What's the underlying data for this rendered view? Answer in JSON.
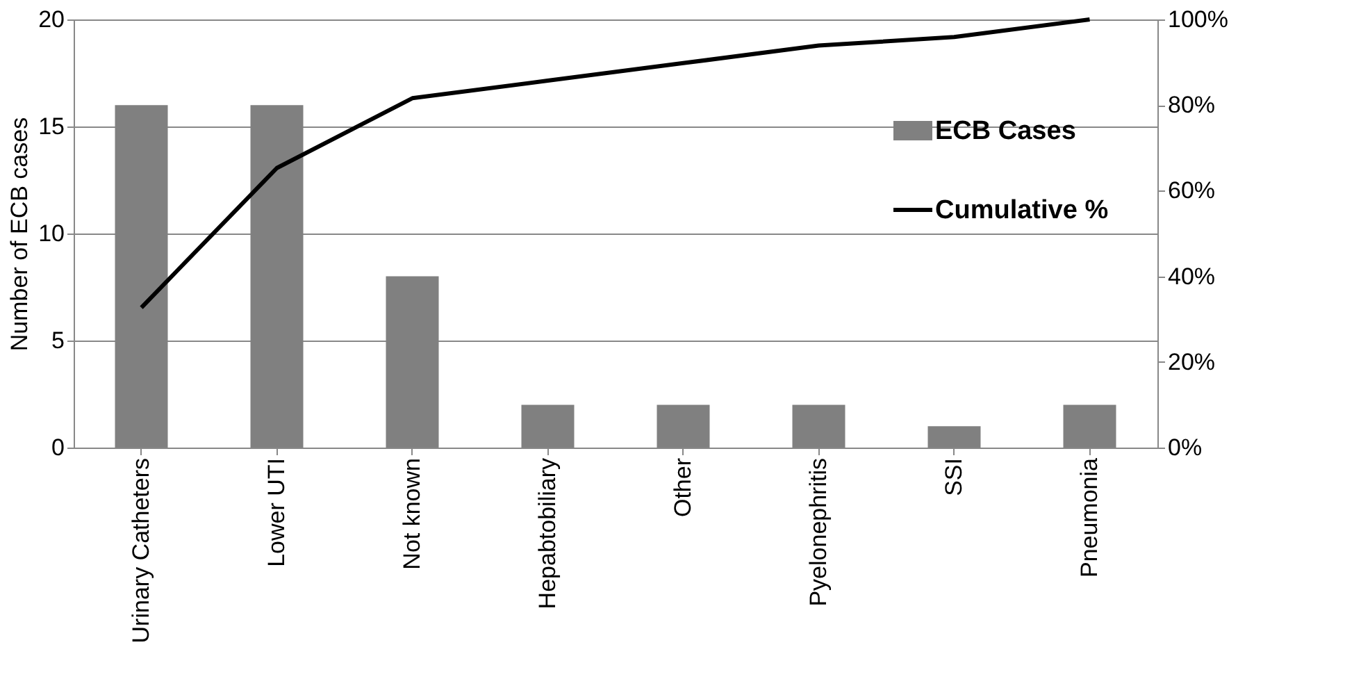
{
  "chart_data": {
    "type": "bar",
    "ylabel": "Number of ECB cases",
    "categories": [
      "Urinary Catheters",
      "Lower UTI",
      "Not known",
      "Hepabtobiliary",
      "Other",
      "Pyelonephritis",
      "SSI",
      "Pneumonia"
    ],
    "series": [
      {
        "name": "ECB Cases",
        "color": "#808080",
        "values": [
          16,
          16,
          8,
          2,
          2,
          2,
          1,
          2
        ]
      },
      {
        "name": "Cumulative %",
        "type": "line",
        "axis": "y2",
        "color": "#000000",
        "values": [
          32.7,
          65.3,
          81.6,
          85.7,
          89.8,
          93.9,
          95.9,
          100
        ]
      }
    ],
    "ylim": [
      0,
      20
    ],
    "yticks": [
      0,
      5,
      10,
      15,
      20
    ],
    "y2lim": [
      0,
      100
    ],
    "y2ticks": [
      {
        "value": 0,
        "label": "0%"
      },
      {
        "value": 20,
        "label": "20%"
      },
      {
        "value": 40,
        "label": "40%"
      },
      {
        "value": 60,
        "label": "60%"
      },
      {
        "value": 80,
        "label": "80%"
      },
      {
        "value": 100,
        "label": "100%"
      }
    ],
    "grid": "y",
    "legend": "top right",
    "marker": "none",
    "line_style": "solid"
  }
}
